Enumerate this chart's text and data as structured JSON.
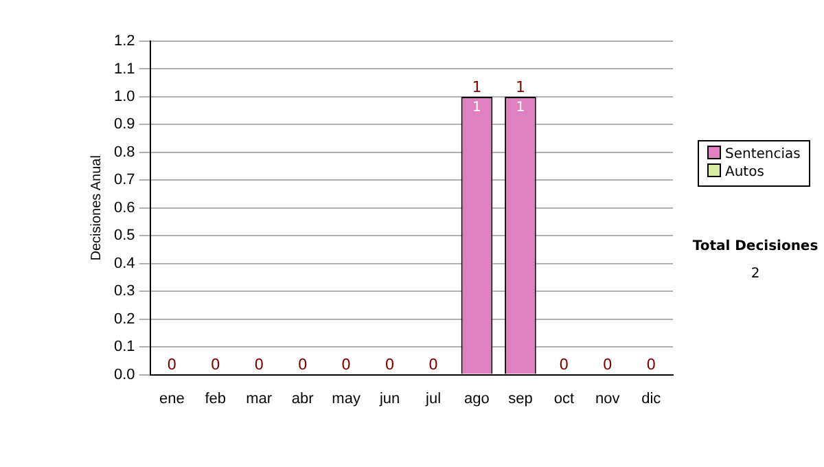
{
  "chart_data": {
    "type": "bar",
    "ylabel": "Decisiones Anual",
    "categories": [
      "ene",
      "feb",
      "mar",
      "abr",
      "may",
      "jun",
      "jul",
      "ago",
      "sep",
      "oct",
      "nov",
      "dic"
    ],
    "stacked": true,
    "series": [
      {
        "name": "Sentencias",
        "color": "#df80c0",
        "values": [
          0,
          0,
          0,
          0,
          0,
          0,
          0,
          1,
          1,
          0,
          0,
          0
        ],
        "value_labels": [
          null,
          null,
          null,
          null,
          null,
          null,
          null,
          "1",
          "1",
          null,
          null,
          null
        ]
      },
      {
        "name": "Autos",
        "color": "#d8eca0",
        "values": [
          0,
          0,
          0,
          0,
          0,
          0,
          0,
          0,
          0,
          0,
          0,
          0
        ]
      }
    ],
    "totals": [
      "0",
      "0",
      "0",
      "0",
      "0",
      "0",
      "0",
      "1",
      "1",
      "0",
      "0",
      "0"
    ],
    "ylim": [
      0,
      1.2
    ],
    "yticks": [
      {
        "value": 0,
        "label": "0.0"
      },
      0.1,
      0.2,
      0.3,
      0.4,
      0.5,
      0.6,
      0.7,
      0.8,
      0.9,
      {
        "value": 1,
        "label": "1.0"
      },
      1.1,
      1.2
    ],
    "grid": "y",
    "legend": "right",
    "annotations": [
      "Total Decisiones",
      "2"
    ]
  }
}
